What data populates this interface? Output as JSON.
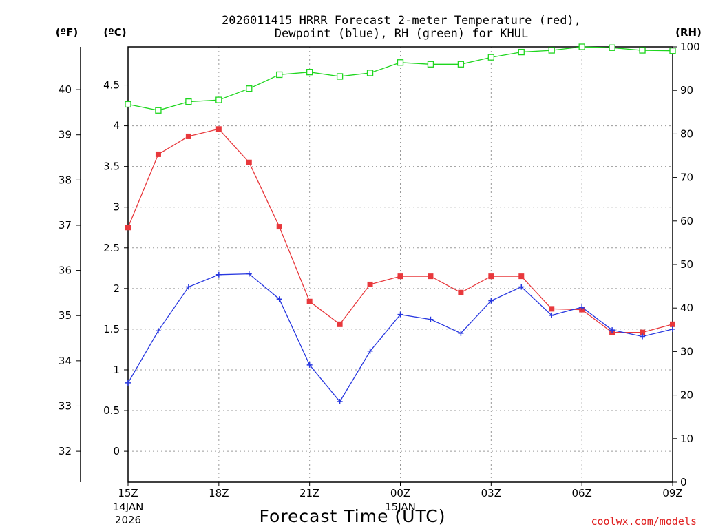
{
  "chart_data": {
    "type": "line",
    "title_line1": "2026011415 HRRR Forecast 2-meter Temperature (red),",
    "title_line2": "Dewpoint (blue), RH (green) for KHUL",
    "unit_f": "(ºF)",
    "unit_c": "(ºC)",
    "unit_rh": "(RH)",
    "xlabel": "Forecast Time (UTC)",
    "credit": "coolwx.com/models",
    "x_hours": [
      0,
      1,
      2,
      3,
      4,
      5,
      6,
      7,
      8,
      9,
      10,
      11,
      12,
      13,
      14,
      15,
      16,
      17,
      18
    ],
    "x_ticks": [
      {
        "hour": 0,
        "label": "15Z",
        "sub1": "14JAN",
        "sub2": "2026"
      },
      {
        "hour": 3,
        "label": "18Z",
        "sub1": "",
        "sub2": ""
      },
      {
        "hour": 6,
        "label": "21Z",
        "sub1": "",
        "sub2": ""
      },
      {
        "hour": 9,
        "label": "00Z",
        "sub1": "15JAN",
        "sub2": ""
      },
      {
        "hour": 12,
        "label": "03Z",
        "sub1": "",
        "sub2": ""
      },
      {
        "hour": 15,
        "label": "06Z",
        "sub1": "",
        "sub2": ""
      },
      {
        "hour": 18,
        "label": "09Z",
        "sub1": "",
        "sub2": ""
      }
    ],
    "celsius_range": [
      -0.38,
      4.97
    ],
    "celsius_ticks": [
      {
        "v": 0,
        "label": "0"
      },
      {
        "v": 0.5,
        "label": "0.5"
      },
      {
        "v": 1,
        "label": "1"
      },
      {
        "v": 1.5,
        "label": "1.5"
      },
      {
        "v": 2,
        "label": "2"
      },
      {
        "v": 2.5,
        "label": "2.5"
      },
      {
        "v": 3,
        "label": "3"
      },
      {
        "v": 3.5,
        "label": "3.5"
      },
      {
        "v": 4,
        "label": "4"
      },
      {
        "v": 4.5,
        "label": "4.5"
      }
    ],
    "fahrenheit_ticks": [
      {
        "v": 32,
        "label": "32"
      },
      {
        "v": 33,
        "label": "33"
      },
      {
        "v": 34,
        "label": "34"
      },
      {
        "v": 35,
        "label": "35"
      },
      {
        "v": 36,
        "label": "36"
      },
      {
        "v": 37,
        "label": "37"
      },
      {
        "v": 38,
        "label": "38"
      },
      {
        "v": 39,
        "label": "39"
      },
      {
        "v": 40,
        "label": "40"
      }
    ],
    "rh_range": [
      0,
      100
    ],
    "rh_ticks": [
      {
        "v": 0,
        "label": "0"
      },
      {
        "v": 10,
        "label": "10"
      },
      {
        "v": 20,
        "label": "20"
      },
      {
        "v": 30,
        "label": "30"
      },
      {
        "v": 40,
        "label": "40"
      },
      {
        "v": 50,
        "label": "50"
      },
      {
        "v": 60,
        "label": "60"
      },
      {
        "v": 70,
        "label": "70"
      },
      {
        "v": 80,
        "label": "80"
      },
      {
        "v": 90,
        "label": "90"
      },
      {
        "v": 100,
        "label": "100"
      }
    ],
    "series": [
      {
        "name": "Temperature",
        "axis": "celsius",
        "color": "#e8383c",
        "marker": "filled-square",
        "values": [
          2.75,
          3.65,
          3.87,
          3.96,
          3.55,
          2.76,
          1.84,
          1.56,
          2.05,
          2.15,
          2.15,
          1.95,
          2.15,
          2.15,
          1.75,
          1.74,
          1.46,
          1.46,
          1.56
        ]
      },
      {
        "name": "Dewpoint",
        "axis": "celsius",
        "color": "#2838e0",
        "marker": "plus",
        "values": [
          0.84,
          1.48,
          2.02,
          2.17,
          2.18,
          1.87,
          1.06,
          0.61,
          1.23,
          1.68,
          1.62,
          1.45,
          1.85,
          2.02,
          1.67,
          1.77,
          1.49,
          1.41,
          1.5
        ]
      },
      {
        "name": "RH",
        "axis": "rh",
        "color": "#1ed61e",
        "marker": "open-square",
        "values": [
          86.8,
          85.4,
          87.4,
          87.8,
          90.4,
          93.6,
          94.2,
          93.2,
          94.0,
          96.4,
          96.0,
          96.0,
          97.6,
          98.8,
          99.2,
          100.0,
          99.8,
          99.2,
          99.1
        ]
      }
    ]
  }
}
